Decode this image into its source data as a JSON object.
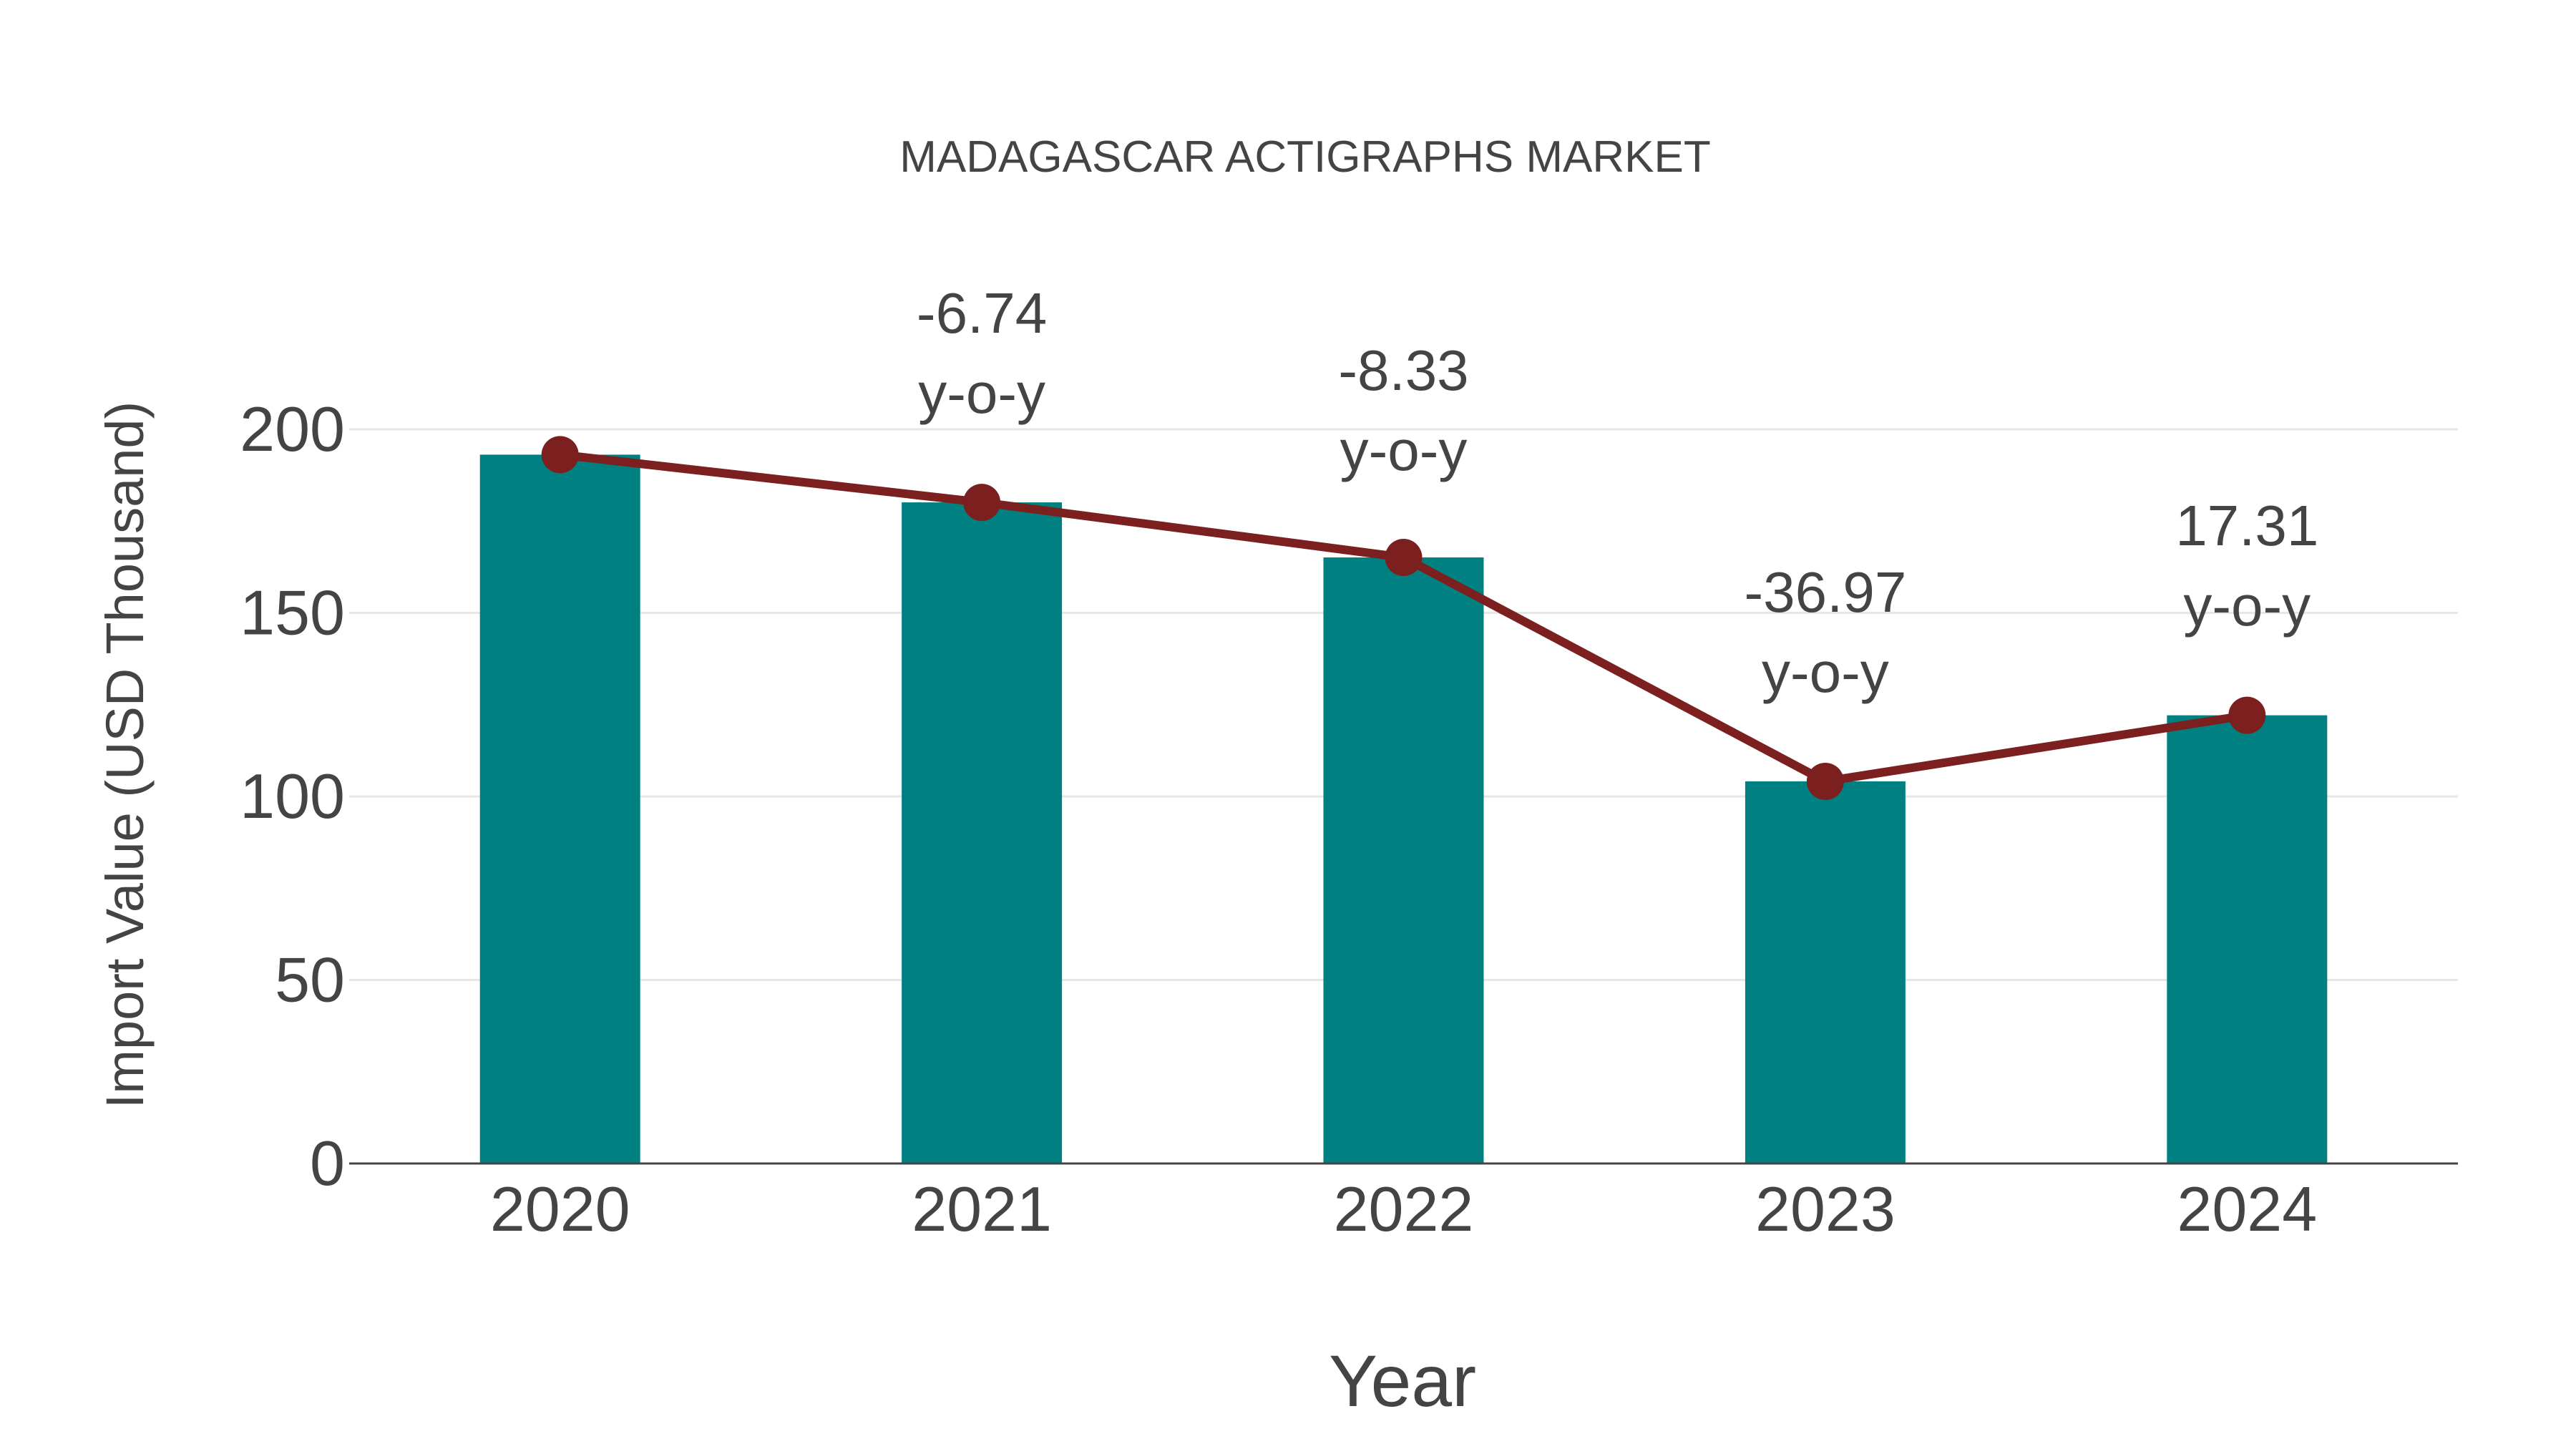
{
  "chart_data": {
    "type": "bar",
    "title": "MADAGASCAR ACTIGRAPHS MARKET",
    "xlabel": "Year",
    "ylabel": "Import Value (USD Thousand)",
    "categories": [
      "2020",
      "2021",
      "2022",
      "2023",
      "2024"
    ],
    "series": [
      {
        "name": "Import Value",
        "type": "bar",
        "color": "#008080",
        "values": [
          193.1,
          180.1,
          165.1,
          104.1,
          122.1
        ]
      },
      {
        "name": "Trend",
        "type": "line",
        "color": "#7b1f1f",
        "values": [
          193.1,
          180.1,
          165.1,
          104.1,
          122.1
        ]
      }
    ],
    "annotations": [
      {
        "category": "2021",
        "value": "-6.74",
        "suffix": "y-o-y"
      },
      {
        "category": "2022",
        "value": "-8.33",
        "suffix": "y-o-y"
      },
      {
        "category": "2023",
        "value": "-36.97",
        "suffix": "y-o-y"
      },
      {
        "category": "2024",
        "value": "17.31",
        "suffix": "y-o-y"
      }
    ],
    "yticks": [
      "0",
      "50",
      "100",
      "150",
      "200"
    ],
    "ylim": [
      0,
      214
    ],
    "grid": true,
    "legend": "none"
  }
}
